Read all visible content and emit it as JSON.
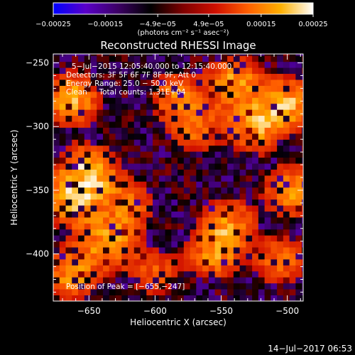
{
  "chart_data": {
    "type": "heatmap",
    "title": "Reconstructed RHESSI Image",
    "xlabel": "Heliocentric X (arcsec)",
    "ylabel": "Heliocentric Y (arcsec)",
    "xlim": [
      -677,
      -488
    ],
    "ylim": [
      -437,
      -243
    ],
    "x_ticks": [
      -650,
      -600,
      -550,
      -500
    ],
    "y_ticks": [
      -400,
      -350,
      -300,
      -250
    ],
    "x_tick_labels": [
      "−650",
      "−600",
      "−550",
      "−500"
    ],
    "y_tick_labels": [
      "−400",
      "−350",
      "−300",
      "−250"
    ],
    "colorbar": {
      "range": [
        -0.00025,
        0.00025
      ],
      "tick_values": [
        -0.00025,
        -0.00015,
        -4.9e-05,
        4.9e-05,
        0.00015,
        0.00025
      ],
      "tick_labels": [
        "−0.00025",
        "−0.00015",
        "−4.9e−05",
        "4.9e−05",
        "0.00015",
        "0.00025"
      ],
      "unit_label": "(photons cm⁻² s⁻¹ asec⁻²)",
      "colors": [
        "#0000ff",
        "#5a00c8",
        "#3c0064",
        "#000000",
        "#7f0000",
        "#d01000",
        "#ff6000",
        "#ffb000",
        "#ffffff"
      ]
    },
    "peak_position": [
      -655,
      -247
    ],
    "hot_regions": [
      {
        "x": -663,
        "y": -278,
        "intensity": 0.9
      },
      {
        "x": -650,
        "y": -335,
        "intensity": 1.0
      },
      {
        "x": -663,
        "y": -358,
        "intensity": 0.9
      },
      {
        "x": -635,
        "y": -390,
        "intensity": 0.8
      },
      {
        "x": -663,
        "y": -415,
        "intensity": 0.8
      },
      {
        "x": -620,
        "y": -360,
        "intensity": 0.6
      },
      {
        "x": -585,
        "y": -275,
        "intensity": 0.6
      },
      {
        "x": -570,
        "y": -300,
        "intensity": 0.6
      },
      {
        "x": -540,
        "y": -265,
        "intensity": 0.8
      },
      {
        "x": -525,
        "y": -300,
        "intensity": 0.8
      },
      {
        "x": -500,
        "y": -282,
        "intensity": 0.9
      },
      {
        "x": -497,
        "y": -350,
        "intensity": 0.8
      },
      {
        "x": -545,
        "y": -375,
        "intensity": 0.7
      },
      {
        "x": -555,
        "y": -400,
        "intensity": 0.7
      },
      {
        "x": -505,
        "y": -405,
        "intensity": 0.6
      },
      {
        "x": -600,
        "y": -415,
        "intensity": 0.5
      }
    ]
  },
  "overlay": {
    "line1": "5−Jul−2015 12:05:40.000 to 12:15:40.000",
    "line2": "Detectors: 3F 5F 6F 7F 8F 9F, Att 0",
    "line3": "Energy Range: 25.0 − 50.0 keV",
    "line4": "Clean     Total counts: 1.31E+04",
    "peak": "Position of Peak = [−655,−247]"
  },
  "timestamp": "14−Jul−2017 06:53"
}
